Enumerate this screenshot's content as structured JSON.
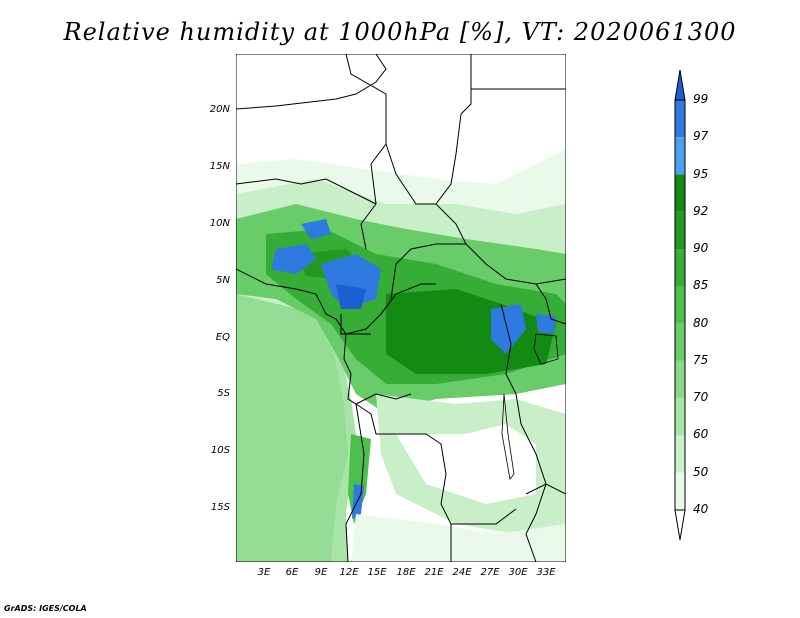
{
  "title": "Relative humidity at 1000hPa [%], VT: 2020061300",
  "credit": "GrADS: IGES/COLA",
  "map": {
    "lat_labels": [
      "20N",
      "15N",
      "10N",
      "5N",
      "EQ",
      "5S",
      "10S",
      "15S"
    ],
    "lon_labels": [
      "3E",
      "6E",
      "9E",
      "12E",
      "15E",
      "18E",
      "21E",
      "24E",
      "27E",
      "30E",
      "33E"
    ]
  },
  "colorbar": {
    "levels": [
      "99",
      "97",
      "95",
      "92",
      "90",
      "85",
      "80",
      "75",
      "70",
      "60",
      "50",
      "40"
    ],
    "colors": [
      "#1b5fd0",
      "#2e7ae0",
      "#4fa0f0",
      "#138a13",
      "#229a22",
      "#36ad36",
      "#4cc04c",
      "#68cc68",
      "#88d888",
      "#a8e4a8",
      "#c8efc8",
      "#eafaea",
      "#ffffff"
    ]
  }
}
